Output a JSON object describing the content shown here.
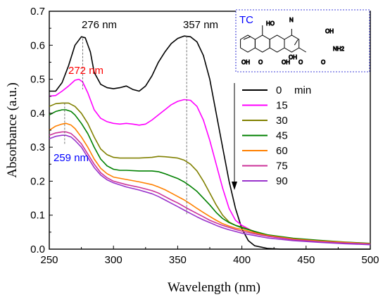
{
  "chart_data": {
    "type": "line",
    "xlabel": "Wavelength (nm)",
    "ylabel": "Absorbance (a.u.)",
    "xlim": [
      250,
      500
    ],
    "ylim": [
      0.0,
      0.7
    ],
    "x_ticks": [
      "250",
      "300",
      "350",
      "400",
      "450",
      "500"
    ],
    "y_ticks": [
      "0.0",
      "0.1",
      "0.2",
      "0.3",
      "0.4",
      "0.5",
      "0.6",
      "0.7"
    ],
    "legend": {
      "unit": "min",
      "placement": "right"
    },
    "series": [
      {
        "name": "0",
        "color": "#000000",
        "points": [
          [
            250,
            0.465
          ],
          [
            255,
            0.465
          ],
          [
            260,
            0.49
          ],
          [
            265,
            0.54
          ],
          [
            270,
            0.6
          ],
          [
            275,
            0.625
          ],
          [
            278,
            0.622
          ],
          [
            282,
            0.58
          ],
          [
            285,
            0.52
          ],
          [
            290,
            0.485
          ],
          [
            295,
            0.475
          ],
          [
            300,
            0.472
          ],
          [
            305,
            0.475
          ],
          [
            310,
            0.48
          ],
          [
            315,
            0.47
          ],
          [
            320,
            0.465
          ],
          [
            325,
            0.48
          ],
          [
            330,
            0.51
          ],
          [
            335,
            0.55
          ],
          [
            340,
            0.58
          ],
          [
            345,
            0.605
          ],
          [
            350,
            0.62
          ],
          [
            355,
            0.627
          ],
          [
            360,
            0.625
          ],
          [
            365,
            0.61
          ],
          [
            370,
            0.57
          ],
          [
            375,
            0.5
          ],
          [
            380,
            0.4
          ],
          [
            385,
            0.3
          ],
          [
            390,
            0.2
          ],
          [
            395,
            0.12
          ],
          [
            400,
            0.06
          ],
          [
            405,
            0.025
          ],
          [
            410,
            0.01
          ],
          [
            420,
            0.002
          ],
          [
            430,
            0.0
          ],
          [
            500,
            0.0
          ]
        ]
      },
      {
        "name": "15",
        "color": "#ff00ff",
        "points": [
          [
            250,
            0.45
          ],
          [
            255,
            0.452
          ],
          [
            260,
            0.465
          ],
          [
            265,
            0.48
          ],
          [
            270,
            0.497
          ],
          [
            273,
            0.5
          ],
          [
            276,
            0.492
          ],
          [
            280,
            0.46
          ],
          [
            285,
            0.41
          ],
          [
            290,
            0.385
          ],
          [
            295,
            0.375
          ],
          [
            300,
            0.37
          ],
          [
            305,
            0.368
          ],
          [
            310,
            0.37
          ],
          [
            315,
            0.368
          ],
          [
            320,
            0.365
          ],
          [
            325,
            0.368
          ],
          [
            330,
            0.38
          ],
          [
            335,
            0.395
          ],
          [
            340,
            0.41
          ],
          [
            345,
            0.425
          ],
          [
            350,
            0.435
          ],
          [
            355,
            0.44
          ],
          [
            360,
            0.438
          ],
          [
            365,
            0.42
          ],
          [
            370,
            0.38
          ],
          [
            375,
            0.32
          ],
          [
            380,
            0.25
          ],
          [
            385,
            0.18
          ],
          [
            390,
            0.12
          ],
          [
            395,
            0.085
          ],
          [
            400,
            0.07
          ],
          [
            410,
            0.05
          ],
          [
            420,
            0.038
          ],
          [
            440,
            0.028
          ],
          [
            460,
            0.022
          ],
          [
            480,
            0.018
          ],
          [
            500,
            0.015
          ]
        ]
      },
      {
        "name": "30",
        "color": "#808000",
        "points": [
          [
            250,
            0.42
          ],
          [
            255,
            0.428
          ],
          [
            260,
            0.43
          ],
          [
            265,
            0.43
          ],
          [
            270,
            0.42
          ],
          [
            275,
            0.4
          ],
          [
            280,
            0.37
          ],
          [
            285,
            0.33
          ],
          [
            290,
            0.295
          ],
          [
            295,
            0.278
          ],
          [
            300,
            0.27
          ],
          [
            305,
            0.268
          ],
          [
            310,
            0.268
          ],
          [
            320,
            0.268
          ],
          [
            325,
            0.269
          ],
          [
            330,
            0.27
          ],
          [
            335,
            0.273
          ],
          [
            340,
            0.272
          ],
          [
            345,
            0.27
          ],
          [
            350,
            0.268
          ],
          [
            355,
            0.262
          ],
          [
            360,
            0.25
          ],
          [
            365,
            0.23
          ],
          [
            370,
            0.2
          ],
          [
            375,
            0.165
          ],
          [
            380,
            0.13
          ],
          [
            385,
            0.1
          ],
          [
            390,
            0.08
          ],
          [
            395,
            0.07
          ],
          [
            400,
            0.065
          ],
          [
            410,
            0.052
          ],
          [
            420,
            0.04
          ],
          [
            440,
            0.03
          ],
          [
            460,
            0.025
          ],
          [
            480,
            0.02
          ],
          [
            500,
            0.016
          ]
        ]
      },
      {
        "name": "45",
        "color": "#008000",
        "points": [
          [
            250,
            0.395
          ],
          [
            255,
            0.405
          ],
          [
            260,
            0.41
          ],
          [
            263,
            0.41
          ],
          [
            267,
            0.405
          ],
          [
            270,
            0.395
          ],
          [
            275,
            0.37
          ],
          [
            280,
            0.34
          ],
          [
            285,
            0.3
          ],
          [
            290,
            0.265
          ],
          [
            295,
            0.245
          ],
          [
            300,
            0.235
          ],
          [
            305,
            0.232
          ],
          [
            310,
            0.232
          ],
          [
            320,
            0.23
          ],
          [
            330,
            0.23
          ],
          [
            335,
            0.228
          ],
          [
            340,
            0.222
          ],
          [
            345,
            0.215
          ],
          [
            350,
            0.208
          ],
          [
            355,
            0.198
          ],
          [
            360,
            0.185
          ],
          [
            365,
            0.17
          ],
          [
            370,
            0.15
          ],
          [
            375,
            0.13
          ],
          [
            380,
            0.108
          ],
          [
            385,
            0.09
          ],
          [
            390,
            0.078
          ],
          [
            395,
            0.07
          ],
          [
            400,
            0.063
          ],
          [
            410,
            0.052
          ],
          [
            420,
            0.042
          ],
          [
            440,
            0.032
          ],
          [
            460,
            0.026
          ],
          [
            480,
            0.021
          ],
          [
            500,
            0.017
          ]
        ]
      },
      {
        "name": "60",
        "color": "#ff8000",
        "points": [
          [
            250,
            0.35
          ],
          [
            255,
            0.362
          ],
          [
            260,
            0.368
          ],
          [
            263,
            0.37
          ],
          [
            267,
            0.365
          ],
          [
            270,
            0.355
          ],
          [
            275,
            0.33
          ],
          [
            280,
            0.3
          ],
          [
            285,
            0.265
          ],
          [
            290,
            0.238
          ],
          [
            295,
            0.222
          ],
          [
            300,
            0.212
          ],
          [
            310,
            0.205
          ],
          [
            320,
            0.198
          ],
          [
            330,
            0.19
          ],
          [
            335,
            0.183
          ],
          [
            340,
            0.175
          ],
          [
            345,
            0.165
          ],
          [
            350,
            0.155
          ],
          [
            355,
            0.145
          ],
          [
            360,
            0.133
          ],
          [
            365,
            0.12
          ],
          [
            370,
            0.108
          ],
          [
            375,
            0.096
          ],
          [
            380,
            0.085
          ],
          [
            385,
            0.075
          ],
          [
            390,
            0.068
          ],
          [
            395,
            0.062
          ],
          [
            400,
            0.058
          ],
          [
            410,
            0.048
          ],
          [
            420,
            0.04
          ],
          [
            440,
            0.03
          ],
          [
            460,
            0.024
          ],
          [
            480,
            0.02
          ],
          [
            500,
            0.016
          ]
        ]
      },
      {
        "name": "75",
        "color": "#cc3399",
        "points": [
          [
            250,
            0.335
          ],
          [
            255,
            0.342
          ],
          [
            260,
            0.345
          ],
          [
            263,
            0.345
          ],
          [
            267,
            0.34
          ],
          [
            270,
            0.33
          ],
          [
            275,
            0.31
          ],
          [
            280,
            0.28
          ],
          [
            285,
            0.25
          ],
          [
            290,
            0.225
          ],
          [
            295,
            0.21
          ],
          [
            300,
            0.2
          ],
          [
            310,
            0.19
          ],
          [
            320,
            0.182
          ],
          [
            330,
            0.172
          ],
          [
            335,
            0.165
          ],
          [
            340,
            0.155
          ],
          [
            345,
            0.145
          ],
          [
            350,
            0.136
          ],
          [
            355,
            0.125
          ],
          [
            360,
            0.115
          ],
          [
            365,
            0.105
          ],
          [
            370,
            0.095
          ],
          [
            375,
            0.085
          ],
          [
            380,
            0.077
          ],
          [
            385,
            0.07
          ],
          [
            390,
            0.064
          ],
          [
            395,
            0.058
          ],
          [
            400,
            0.053
          ],
          [
            410,
            0.045
          ],
          [
            420,
            0.038
          ],
          [
            440,
            0.028
          ],
          [
            460,
            0.022
          ],
          [
            480,
            0.018
          ],
          [
            500,
            0.015
          ]
        ]
      },
      {
        "name": "90",
        "color": "#9933cc",
        "points": [
          [
            250,
            0.325
          ],
          [
            255,
            0.332
          ],
          [
            260,
            0.335
          ],
          [
            263,
            0.335
          ],
          [
            267,
            0.33
          ],
          [
            270,
            0.32
          ],
          [
            275,
            0.3
          ],
          [
            280,
            0.27
          ],
          [
            285,
            0.24
          ],
          [
            290,
            0.218
          ],
          [
            295,
            0.204
          ],
          [
            300,
            0.195
          ],
          [
            310,
            0.183
          ],
          [
            320,
            0.174
          ],
          [
            330,
            0.163
          ],
          [
            335,
            0.155
          ],
          [
            340,
            0.145
          ],
          [
            345,
            0.135
          ],
          [
            350,
            0.125
          ],
          [
            355,
            0.115
          ],
          [
            360,
            0.105
          ],
          [
            365,
            0.095
          ],
          [
            370,
            0.086
          ],
          [
            375,
            0.078
          ],
          [
            380,
            0.07
          ],
          [
            385,
            0.063
          ],
          [
            390,
            0.057
          ],
          [
            395,
            0.052
          ],
          [
            400,
            0.047
          ],
          [
            410,
            0.04
          ],
          [
            420,
            0.033
          ],
          [
            440,
            0.025
          ],
          [
            460,
            0.02
          ],
          [
            480,
            0.016
          ],
          [
            500,
            0.013
          ]
        ]
      }
    ],
    "annotations": [
      {
        "text": "276 nm",
        "x": 276,
        "color": "#000000"
      },
      {
        "text": "357 nm",
        "x": 357,
        "color": "#000000"
      },
      {
        "text": "272 nm",
        "x": 272,
        "color": "#ff0000"
      },
      {
        "text": "259 nm",
        "x": 262,
        "color": "#0000ff"
      }
    ],
    "inset": {
      "label": "TC",
      "atom_labels": [
        "HO",
        "N",
        "OH",
        "NH2",
        "OH",
        "O",
        "OH",
        "OH",
        "O",
        "O"
      ]
    }
  }
}
